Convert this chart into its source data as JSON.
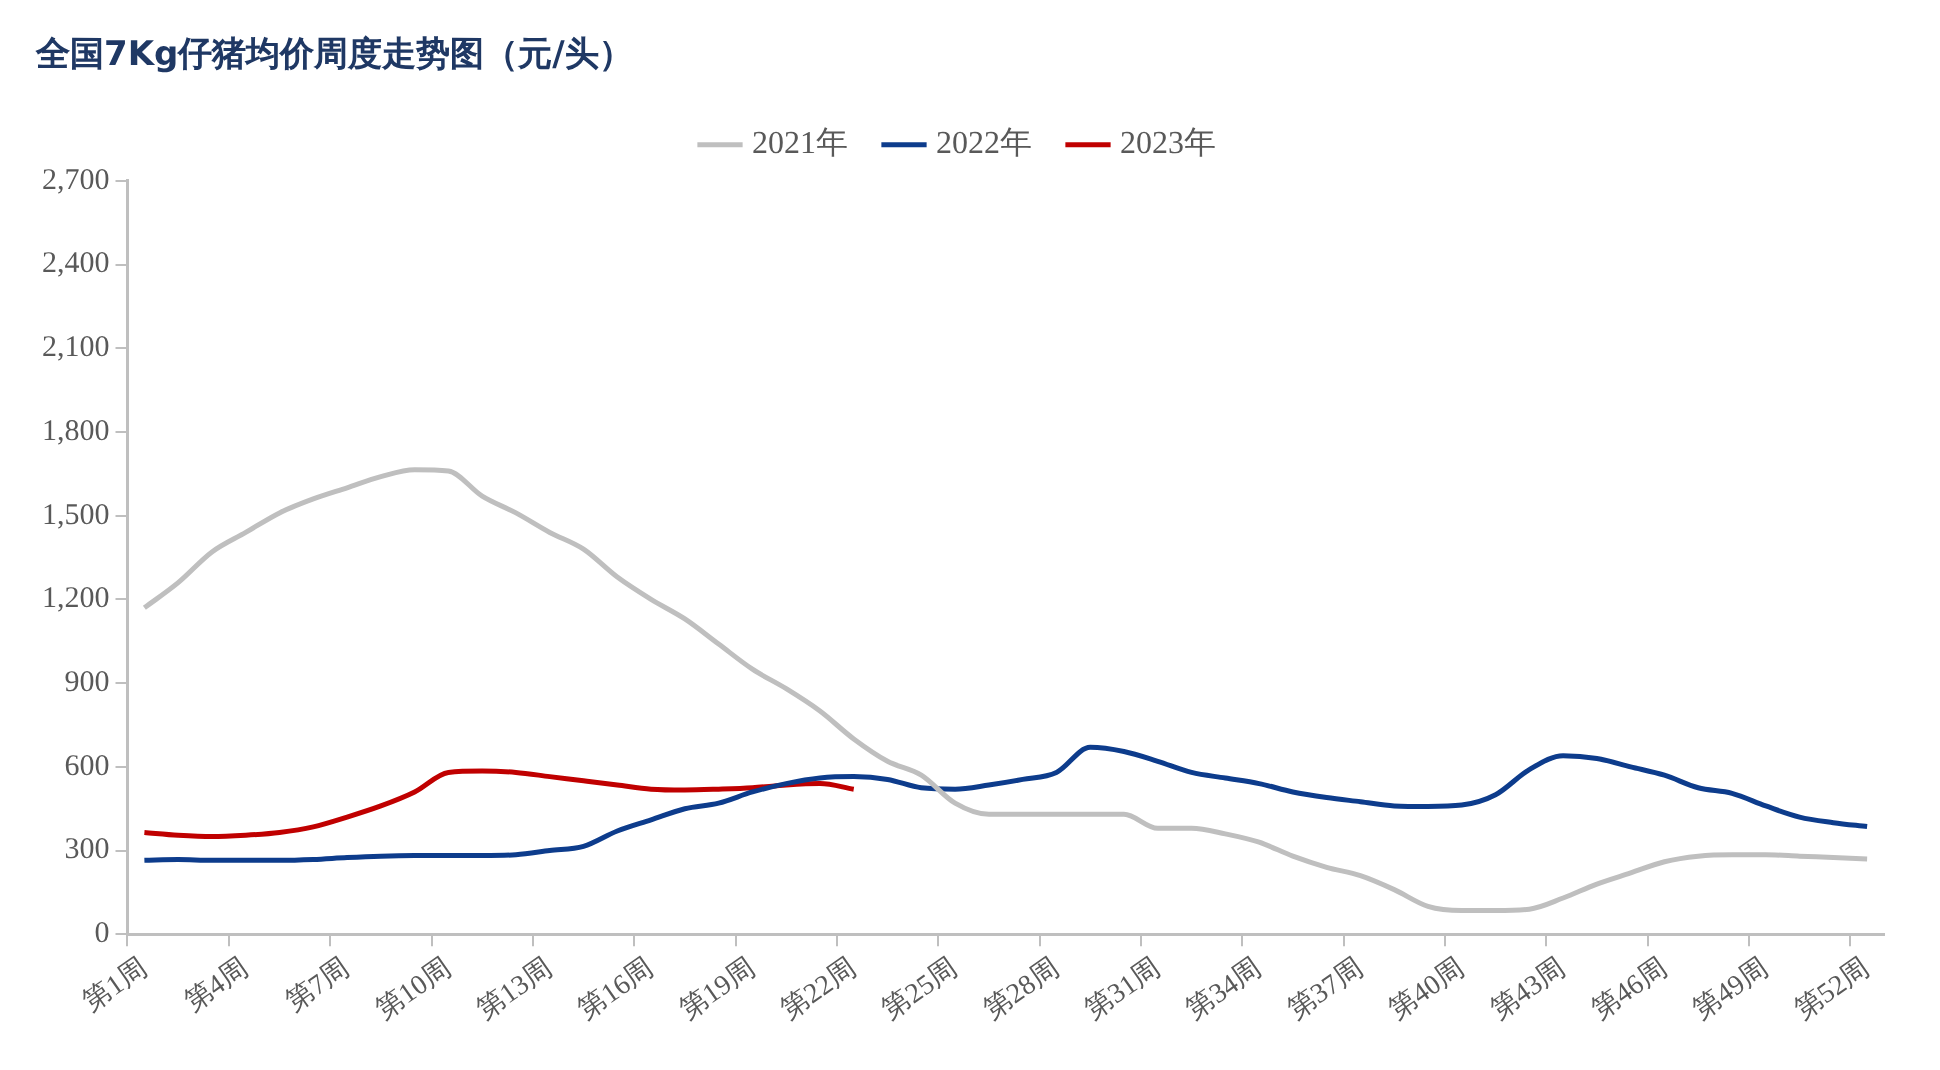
{
  "chart_data": {
    "type": "line",
    "title": "全国7Kg仔猪均价周度走势图（元/头）",
    "categories": [
      "第1周",
      null,
      null,
      "第4周",
      null,
      null,
      "第7周",
      null,
      null,
      "第10周",
      null,
      null,
      "第13周",
      null,
      null,
      "第16周",
      null,
      null,
      "第19周",
      null,
      null,
      "第22周",
      null,
      null,
      "第25周",
      null,
      null,
      "第28周",
      null,
      null,
      "第31周",
      null,
      null,
      "第34周",
      null,
      null,
      "第37周",
      null,
      null,
      "第40周",
      null,
      null,
      "第43周",
      null,
      null,
      "第46周",
      null,
      null,
      "第49周",
      null,
      null,
      "第52周"
    ],
    "series": [
      {
        "name": "2021年",
        "color": "#bfbfbf",
        "values": [
          1170,
          1260,
          1370,
          1440,
          1510,
          1560,
          1600,
          1640,
          1665,
          1660,
          1570,
          1510,
          1440,
          1380,
          1280,
          1200,
          1130,
          1040,
          950,
          880,
          800,
          700,
          620,
          570,
          470,
          430,
          430,
          430,
          430,
          430,
          380,
          380,
          360,
          330,
          280,
          240,
          210,
          160,
          100,
          85,
          85,
          90,
          130,
          180,
          220,
          260,
          280,
          285,
          285,
          280,
          275,
          270
        ]
      },
      {
        "name": "2022年",
        "color": "#0d3c8c",
        "values": [
          265,
          268,
          265,
          265,
          265,
          268,
          275,
          280,
          282,
          282,
          282,
          285,
          300,
          315,
          370,
          410,
          450,
          470,
          510,
          540,
          560,
          565,
          555,
          525,
          520,
          535,
          555,
          580,
          670,
          655,
          620,
          580,
          560,
          540,
          510,
          490,
          475,
          460,
          458,
          463,
          500,
          590,
          640,
          630,
          600,
          570,
          525,
          505,
          460,
          420,
          400,
          386
        ]
      },
      {
        "name": "2023年",
        "color": "#c00000",
        "values": [
          365,
          355,
          350,
          355,
          365,
          385,
          420,
          460,
          510,
          580,
          585,
          580,
          565,
          550,
          535,
          520,
          517,
          520,
          525,
          535,
          540,
          520,
          null,
          null,
          null,
          null,
          null,
          null,
          null,
          null,
          null,
          null,
          null,
          null,
          null,
          null,
          null,
          null,
          null,
          null,
          null,
          null,
          null,
          null,
          null,
          null,
          null,
          null,
          null,
          null,
          null,
          null
        ]
      }
    ],
    "ylim": [
      0,
      2700
    ],
    "yticks": [
      0,
      300,
      600,
      900,
      {
        "value": 1200,
        "label": "1,200"
      },
      {
        "value": 1500,
        "label": "1,500"
      },
      {
        "value": 1800,
        "label": "1,800"
      },
      {
        "value": 2100,
        "label": "2,100"
      },
      {
        "value": 2400,
        "label": "2,400"
      },
      {
        "value": 2700,
        "label": "2,700"
      }
    ],
    "grid": false,
    "legend": "top",
    "marker": "none",
    "line_style": "solid"
  }
}
